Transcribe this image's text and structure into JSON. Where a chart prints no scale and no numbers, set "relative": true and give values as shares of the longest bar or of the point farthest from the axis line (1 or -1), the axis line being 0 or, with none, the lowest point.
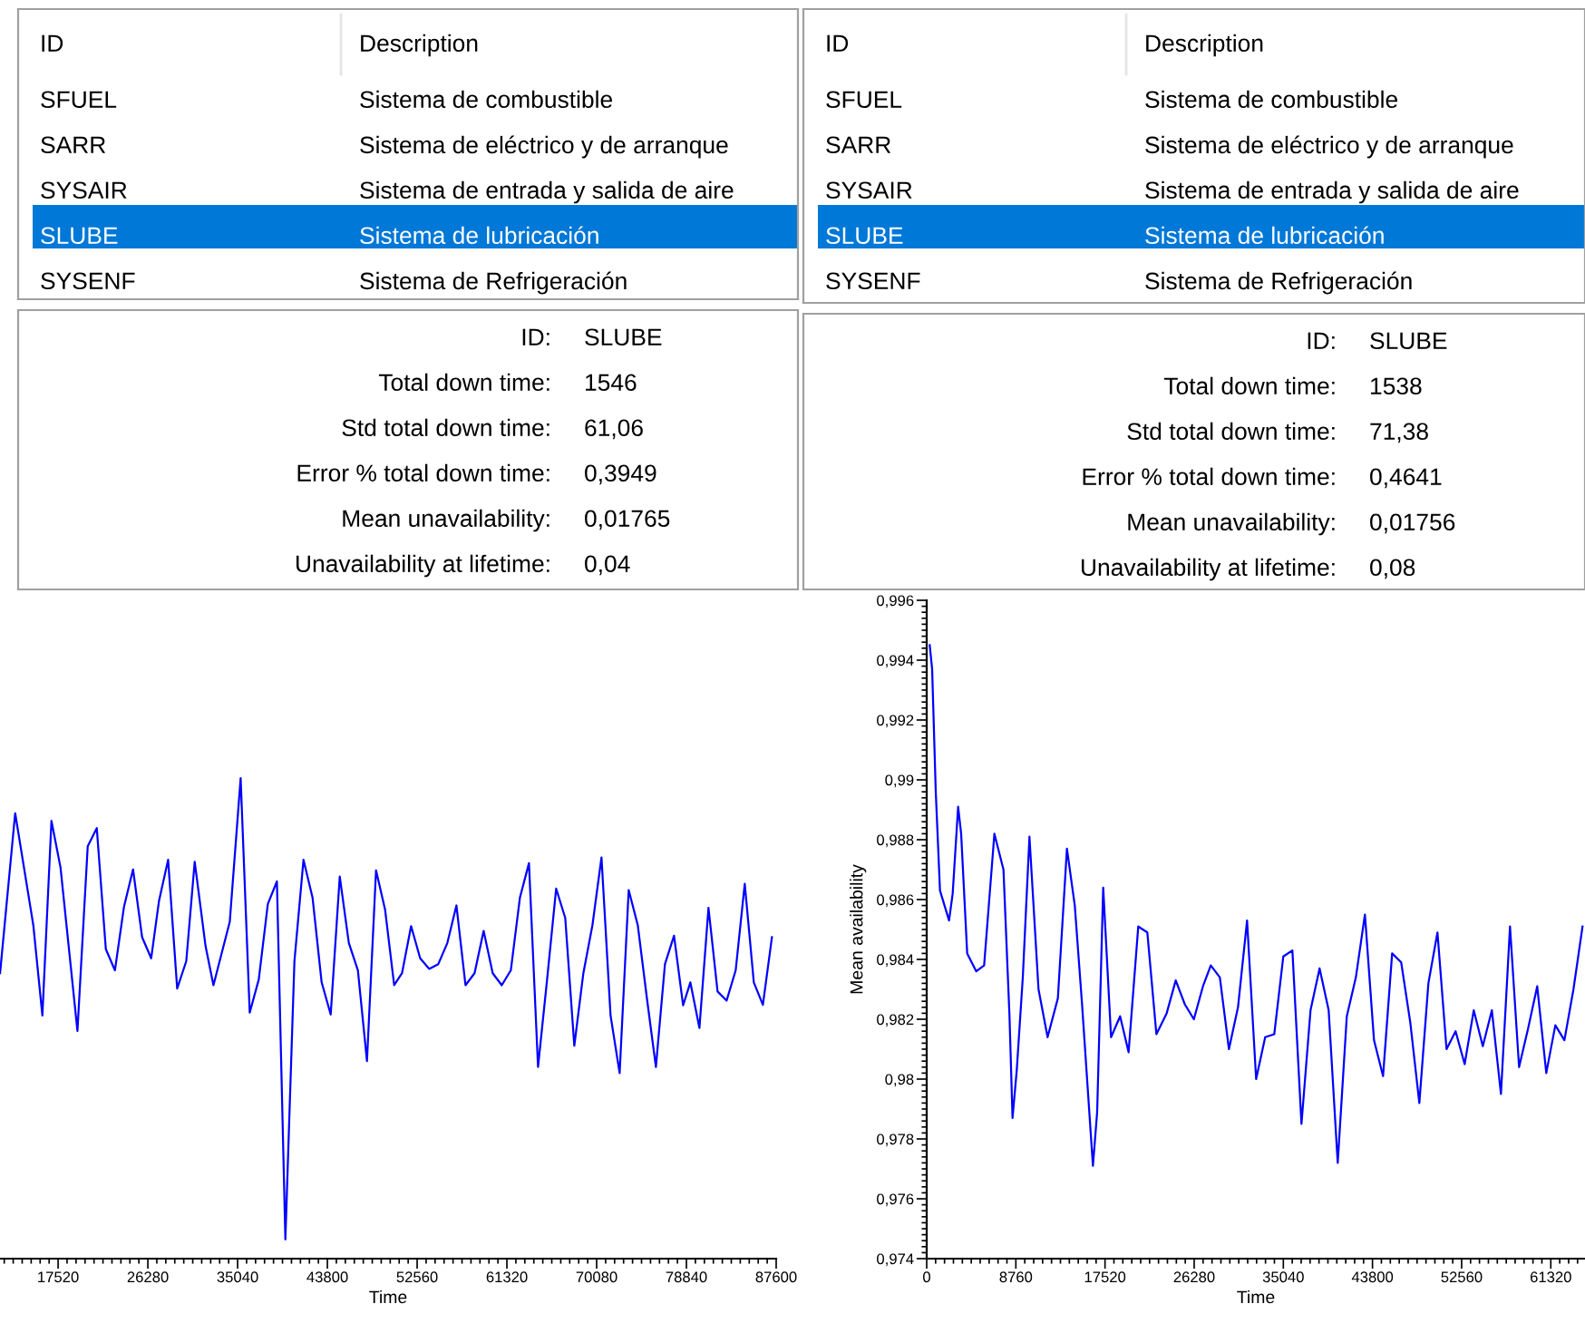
{
  "chart_data": [
    {
      "type": "other",
      "annotations": [
        "ID",
        "Description",
        "SFUEL",
        "Sistema de combustible",
        "SARR",
        "Sistema de eléctrico y de arranque",
        "SYSAIR",
        "Sistema de entrada y salida de aire",
        "SLUBE",
        "Sistema de lubricación",
        "SYSENF",
        "Sistema de Refrigeración"
      ]
    },
    {
      "type": "other",
      "annotations": [
        "ID",
        "Description",
        "SFUEL",
        "Sistema de combustible",
        "SARR",
        "Sistema de eléctrico y de arranque",
        "SYSAIR",
        "Sistema de entrada y salida de aire",
        "SLUBE",
        "Sistema de lubricación",
        "SYSENF",
        "Sistema de Refrigeración"
      ]
    },
    {
      "type": "other",
      "annotations": [
        "ID:",
        "SLUBE",
        "Total down time:",
        "1546",
        "Std total down time:",
        "61,06",
        "Error % total down time:",
        "0,3949",
        "Mean unavailability:",
        "0,01765",
        "Unavailability at lifetime:",
        "0,04"
      ]
    },
    {
      "type": "other",
      "annotations": [
        "ID:",
        "SLUBE",
        "Total down time:",
        "1538",
        "Std total down time:",
        "71,38",
        "Error % total down time:",
        "0,4641",
        "Mean unavailability:",
        "0,01756",
        "Unavailability at lifetime:",
        "0,08"
      ]
    },
    {
      "type": "line",
      "relative": true,
      "xlabel": "Time",
      "xlim": [
        11850,
        87600
      ],
      "xticks": [
        17520,
        26280,
        35040,
        43800,
        52560,
        61320,
        70080,
        78840,
        87600
      ],
      "series": [
        {
          "color": "#0000ff",
          "x": [
            11857,
            13331,
            15101,
            15986,
            16871,
            17756,
            19408,
            20410,
            21295,
            22180,
            23065,
            23950,
            24835,
            25719,
            26604,
            27372,
            28257,
            29142,
            30027,
            30852,
            31914,
            32681,
            34274,
            35336,
            36221,
            37105,
            37990,
            38875,
            39700,
            40585,
            41470,
            42355,
            43240,
            44124,
            45009,
            45894,
            46779,
            47664,
            48549,
            49434,
            50318,
            51085,
            51970,
            52855,
            53740,
            54625,
            55510,
            56395,
            57280,
            58164,
            59049,
            59934,
            60819,
            61704,
            62589,
            63474,
            64358,
            65243,
            66128,
            67013,
            67898,
            68783,
            69668,
            70553,
            71437,
            72322,
            73207,
            74092,
            74977,
            75862,
            76747,
            77631,
            78516,
            79224,
            80109,
            80994,
            81879,
            82764,
            83648,
            84533,
            85418,
            86303,
            87188
          ],
          "values": [
            0.594,
            0.927,
            0.694,
            0.506,
            0.911,
            0.814,
            0.474,
            0.858,
            0.896,
            0.644,
            0.6,
            0.732,
            0.81,
            0.669,
            0.625,
            0.745,
            0.83,
            0.562,
            0.619,
            0.826,
            0.65,
            0.569,
            0.701,
            1,
            0.512,
            0.581,
            0.738,
            0.785,
            0.04,
            0.619,
            0.83,
            0.751,
            0.575,
            0.508,
            0.795,
            0.657,
            0.6,
            0.411,
            0.808,
            0.726,
            0.569,
            0.594,
            0.692,
            0.625,
            0.603,
            0.613,
            0.657,
            0.735,
            0.569,
            0.594,
            0.682,
            0.594,
            0.569,
            0.6,
            0.751,
            0.823,
            0.399,
            0.581,
            0.77,
            0.709,
            0.443,
            0.594,
            0.694,
            0.835,
            0.506,
            0.386,
            0.767,
            0.694,
            0.543,
            0.399,
            0.613,
            0.672,
            0.527,
            0.575,
            0.48,
            0.73,
            0.556,
            0.537,
            0.6,
            0.78,
            0.575,
            0.528,
            0.669
          ]
        }
      ]
    },
    {
      "type": "line",
      "xlabel": "Time",
      "ylabel": "Mean availability",
      "xlim": [
        0,
        64680
      ],
      "ylim": [
        0.974,
        0.996
      ],
      "xticks": [
        0,
        8760,
        17520,
        26280,
        35040,
        43800,
        52560,
        61320
      ],
      "yticks": [
        {
          "value": 0.974,
          "label": "0,974"
        },
        {
          "value": 0.976,
          "label": "0,976"
        },
        {
          "value": 0.978,
          "label": "0,978"
        },
        {
          "value": 0.98,
          "label": "0,98"
        },
        {
          "value": 0.982,
          "label": "0,982"
        },
        {
          "value": 0.984,
          "label": "0,984"
        },
        {
          "value": 0.986,
          "label": "0,986"
        },
        {
          "value": 0.988,
          "label": "0,988"
        },
        {
          "value": 0.99,
          "label": "0,99"
        },
        {
          "value": 0.992,
          "label": "0,992"
        },
        {
          "value": 0.994,
          "label": "0,994"
        },
        {
          "value": 0.996,
          "label": "0,996"
        }
      ],
      "series": [
        {
          "color": "#0000ff",
          "x": [
            297,
            535,
            891,
            1307,
            2197,
            2554,
            3088,
            3385,
            3979,
            4870,
            5642,
            6652,
            7543,
            8136,
            8433,
            8849,
            9443,
            10096,
            10987,
            11878,
            12888,
            13779,
            14551,
            15264,
            16333,
            16748,
            17342,
            18114,
            19005,
            19837,
            20787,
            21678,
            22569,
            23578,
            24469,
            25360,
            26251,
            27142,
            27913,
            28804,
            29695,
            30586,
            31477,
            32368,
            33258,
            34149,
            35040,
            35931,
            36822,
            37713,
            38603,
            39494,
            40385,
            41276,
            42167,
            43058,
            43949,
            44839,
            45730,
            46621,
            47512,
            48403,
            49294,
            50185,
            51075,
            51966,
            52857,
            53748,
            54639,
            55530,
            56421,
            57311,
            58202,
            59093,
            59984,
            60875,
            61766,
            62657,
            63547,
            64438
          ],
          "values": [
            0.9945,
            0.9937,
            0.9896,
            0.9863,
            0.9853,
            0.9862,
            0.9891,
            0.9882,
            0.9842,
            0.9836,
            0.9838,
            0.9882,
            0.987,
            0.9821,
            0.9787,
            0.9803,
            0.9834,
            0.9881,
            0.983,
            0.9814,
            0.9827,
            0.9877,
            0.9858,
            0.9825,
            0.9771,
            0.9789,
            0.9864,
            0.9814,
            0.9821,
            0.9809,
            0.9851,
            0.9849,
            0.9815,
            0.9822,
            0.9833,
            0.9825,
            0.982,
            0.9831,
            0.9838,
            0.9834,
            0.981,
            0.9824,
            0.9853,
            0.98,
            0.9814,
            0.9815,
            0.9841,
            0.9843,
            0.9785,
            0.9823,
            0.9837,
            0.9823,
            0.9772,
            0.9821,
            0.9834,
            0.9855,
            0.9813,
            0.9801,
            0.9842,
            0.9839,
            0.9819,
            0.9792,
            0.9832,
            0.9849,
            0.981,
            0.9816,
            0.9805,
            0.9823,
            0.9811,
            0.9823,
            0.9795,
            0.9851,
            0.9804,
            0.9817,
            0.9831,
            0.9802,
            0.9818,
            0.9813,
            0.983,
            0.9851
          ]
        }
      ]
    }
  ]
}
